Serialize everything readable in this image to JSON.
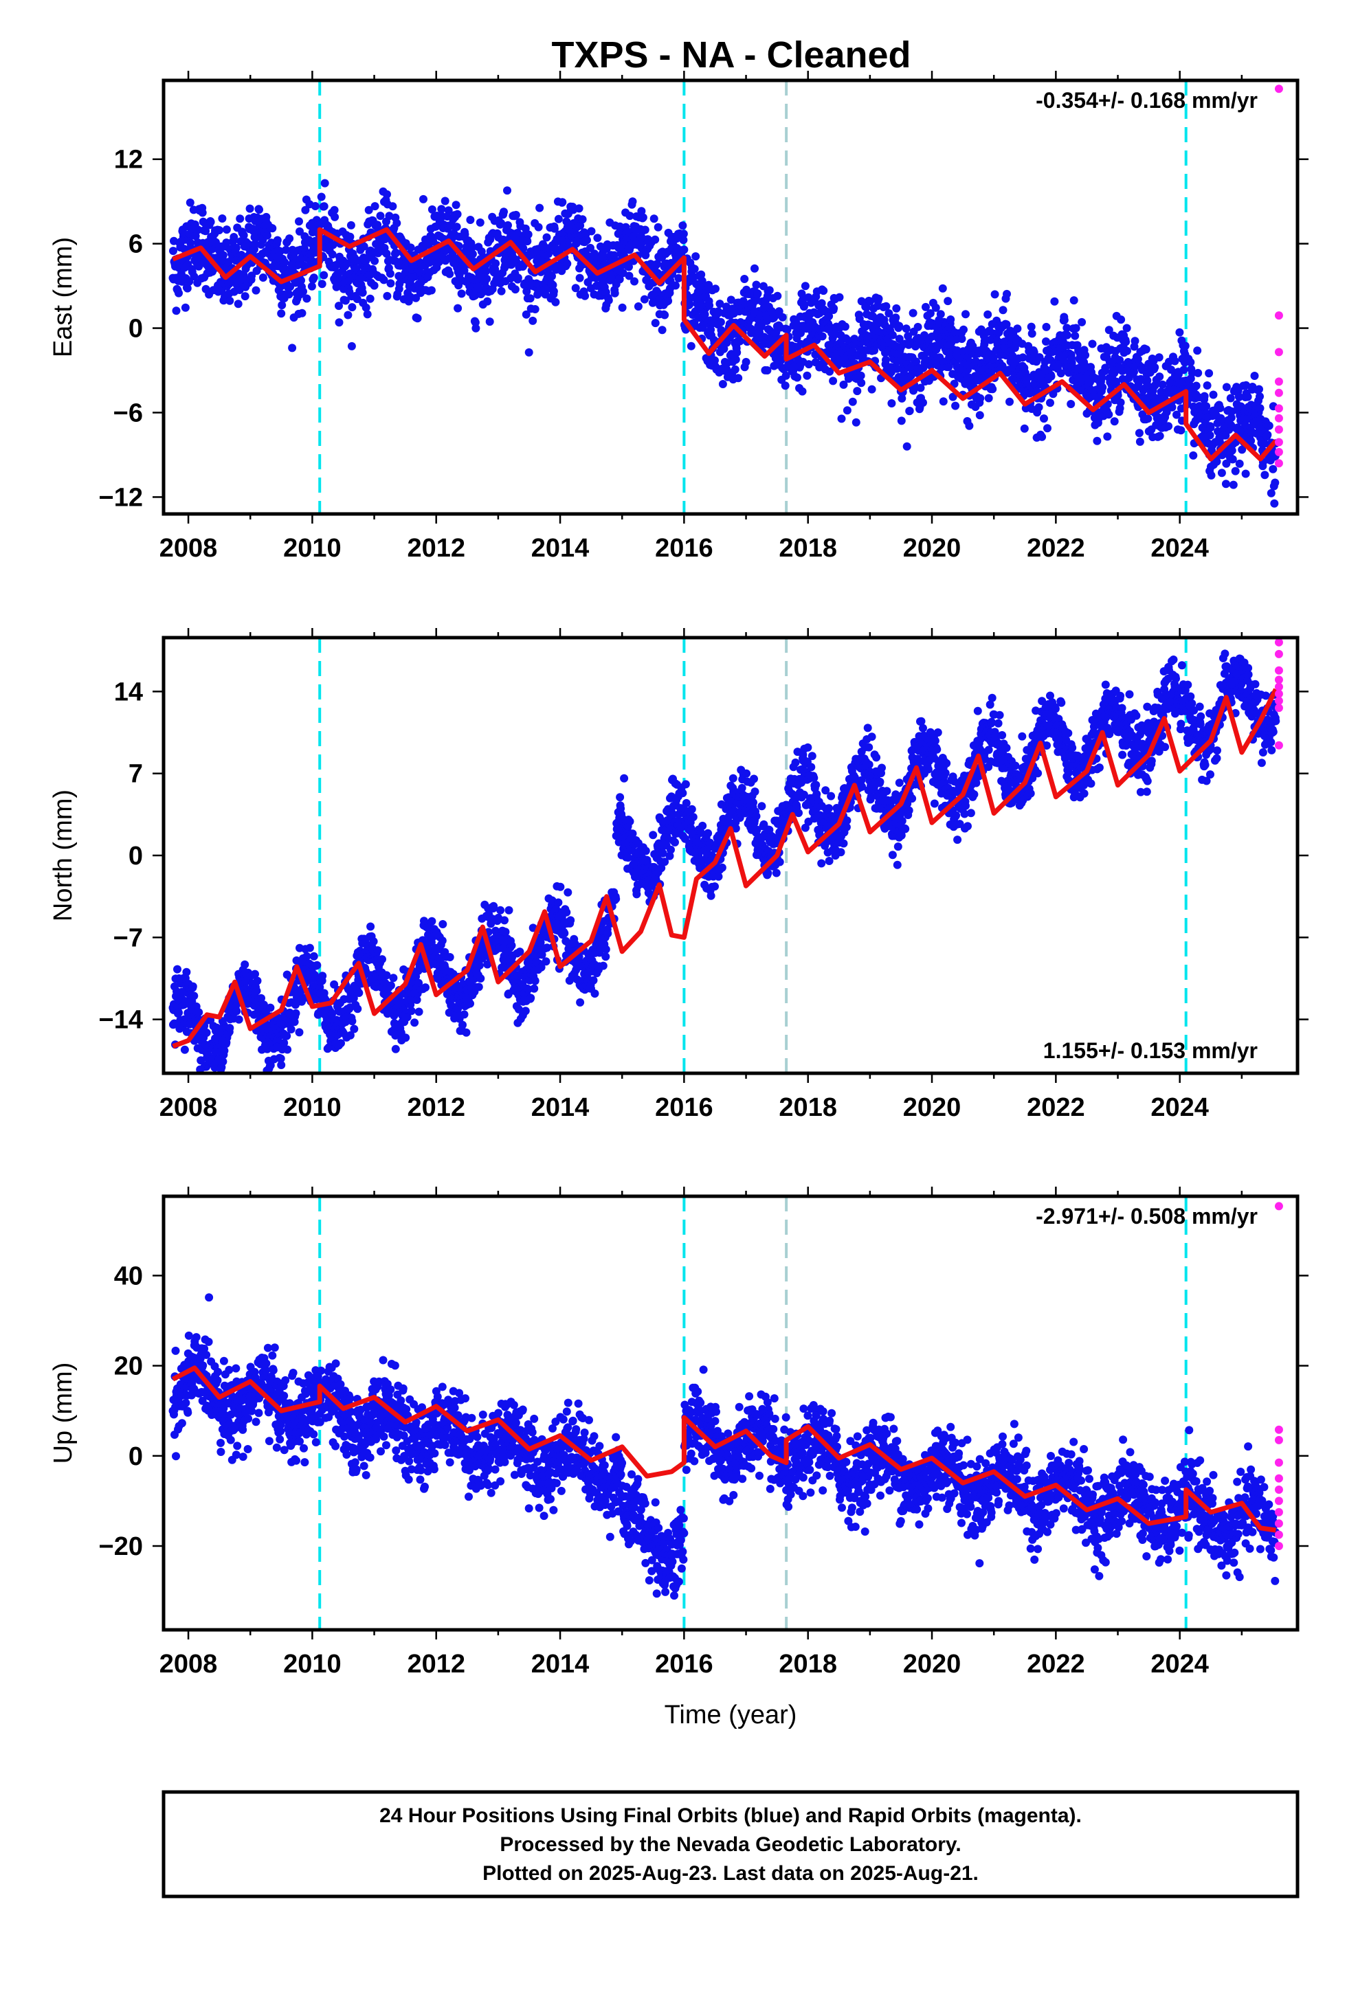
{
  "chart_data": {
    "type": "scatter",
    "title": "TXPS  - NA - Cleaned",
    "x_axis": {
      "label": "Time (year)",
      "range": [
        2007.6,
        2025.9
      ],
      "ticks": [
        2008,
        2010,
        2012,
        2014,
        2016,
        2018,
        2020,
        2022,
        2024
      ],
      "tick_labels": [
        "2008",
        "2010",
        "2012",
        "2014",
        "2016",
        "2018",
        "2020",
        "2022",
        "2024"
      ]
    },
    "event_lines": [
      {
        "x": 2010.12,
        "color": "#00e5ee"
      },
      {
        "x": 2016.0,
        "color": "#00e5ee"
      },
      {
        "x": 2017.65,
        "color": "#a8cfd2"
      },
      {
        "x": 2024.1,
        "color": "#00e5ee"
      }
    ],
    "panels": [
      {
        "id": "east",
        "ylabel": "East (mm)",
        "ylim": [
          -13.2,
          17.6
        ],
        "yticks": [
          -12,
          -6,
          0,
          6,
          12
        ],
        "ytick_labels": [
          "−12",
          "−6",
          "0",
          "6",
          "12"
        ],
        "rate_text": "-0.354+/- 0.168 mm/yr",
        "rate_position": "top-right",
        "final_orbits_trend": [
          [
            2007.75,
            5.0
          ],
          [
            2016.0,
            5.0
          ],
          [
            2016.0,
            0.5
          ],
          [
            2024.1,
            -4.3
          ],
          [
            2024.1,
            -6.5
          ],
          [
            2025.55,
            -8.0
          ]
        ],
        "seasonal": {
          "amplitude": 1.2,
          "phase": 0.1
        },
        "scatter_sigma": 1.5,
        "model_curve": [
          [
            2007.75,
            4.9
          ],
          [
            2008.2,
            5.7
          ],
          [
            2008.6,
            3.6
          ],
          [
            2009.0,
            5.1
          ],
          [
            2009.5,
            3.3
          ],
          [
            2010.12,
            4.4
          ],
          [
            2010.12,
            7.0
          ],
          [
            2010.6,
            5.8
          ],
          [
            2011.2,
            7.0
          ],
          [
            2011.6,
            4.8
          ],
          [
            2012.2,
            6.2
          ],
          [
            2012.6,
            4.2
          ],
          [
            2013.2,
            6.1
          ],
          [
            2013.6,
            4.0
          ],
          [
            2014.2,
            5.6
          ],
          [
            2014.6,
            3.9
          ],
          [
            2015.2,
            5.2
          ],
          [
            2015.6,
            3.2
          ],
          [
            2016.0,
            5.0
          ],
          [
            2016.0,
            0.6
          ],
          [
            2016.4,
            -1.8
          ],
          [
            2016.8,
            0.2
          ],
          [
            2017.3,
            -2.0
          ],
          [
            2017.65,
            -0.5
          ],
          [
            2017.65,
            -2.2
          ],
          [
            2018.1,
            -1.2
          ],
          [
            2018.5,
            -3.2
          ],
          [
            2019.0,
            -2.4
          ],
          [
            2019.5,
            -4.4
          ],
          [
            2020.0,
            -3.0
          ],
          [
            2020.5,
            -5.0
          ],
          [
            2021.1,
            -3.2
          ],
          [
            2021.5,
            -5.4
          ],
          [
            2022.1,
            -3.8
          ],
          [
            2022.6,
            -5.8
          ],
          [
            2023.1,
            -4.0
          ],
          [
            2023.5,
            -6.0
          ],
          [
            2024.1,
            -4.5
          ],
          [
            2024.1,
            -6.8
          ],
          [
            2024.5,
            -9.3
          ],
          [
            2024.9,
            -7.6
          ],
          [
            2025.3,
            -9.3
          ],
          [
            2025.55,
            -8.0
          ]
        ],
        "rapid_orbits": [
          [
            2025.6,
            17.0
          ],
          [
            2025.6,
            0.9
          ],
          [
            2025.6,
            -1.7
          ],
          [
            2025.6,
            -3.8
          ],
          [
            2025.6,
            -4.6
          ],
          [
            2025.6,
            -5.7
          ],
          [
            2025.6,
            -6.4
          ],
          [
            2025.6,
            -7.2
          ],
          [
            2025.6,
            -8.1
          ],
          [
            2025.6,
            -8.8
          ],
          [
            2025.6,
            -9.6
          ]
        ]
      },
      {
        "id": "north",
        "ylabel": "North (mm)",
        "ylim": [
          -18.6,
          18.6
        ],
        "yticks": [
          -14,
          -7,
          0,
          7,
          14
        ],
        "ytick_labels": [
          "−14",
          "−7",
          "0",
          "7",
          "14"
        ],
        "rate_text": "1.155+/- 0.153 mm/yr",
        "rate_position": "bottom-right",
        "final_orbits_trend": [
          [
            2007.75,
            -15.0
          ],
          [
            2014.9,
            -7.0
          ],
          [
            2014.9,
            0.0
          ],
          [
            2025.55,
            13.5
          ]
        ],
        "seasonal": {
          "amplitude": 2.6,
          "phase": 0.35
        },
        "scatter_sigma": 1.3,
        "model_curve": [
          [
            2007.75,
            -16.3
          ],
          [
            2008.0,
            -15.8
          ],
          [
            2008.3,
            -13.6
          ],
          [
            2008.5,
            -13.8
          ],
          [
            2008.75,
            -10.8
          ],
          [
            2009.0,
            -14.8
          ],
          [
            2009.5,
            -13.2
          ],
          [
            2009.75,
            -9.5
          ],
          [
            2010.0,
            -12.9
          ],
          [
            2010.3,
            -12.6
          ],
          [
            2010.6,
            -10.3
          ],
          [
            2010.75,
            -9.2
          ],
          [
            2011.0,
            -13.5
          ],
          [
            2011.5,
            -11.0
          ],
          [
            2011.75,
            -7.6
          ],
          [
            2012.0,
            -11.9
          ],
          [
            2012.5,
            -9.8
          ],
          [
            2012.75,
            -6.1
          ],
          [
            2013.0,
            -10.8
          ],
          [
            2013.5,
            -8.2
          ],
          [
            2013.75,
            -4.8
          ],
          [
            2014.0,
            -9.5
          ],
          [
            2014.5,
            -7.3
          ],
          [
            2014.75,
            -3.5
          ],
          [
            2015.0,
            -8.2
          ],
          [
            2015.3,
            -6.5
          ],
          [
            2015.6,
            -2.5
          ],
          [
            2015.8,
            -6.8
          ],
          [
            2016.0,
            -7.0
          ],
          [
            2016.2,
            -2.0
          ],
          [
            2016.5,
            -0.6
          ],
          [
            2016.75,
            2.3
          ],
          [
            2017.0,
            -2.6
          ],
          [
            2017.5,
            0.0
          ],
          [
            2017.75,
            3.5
          ],
          [
            2018.0,
            0.3
          ],
          [
            2018.5,
            2.7
          ],
          [
            2018.75,
            6.0
          ],
          [
            2019.0,
            2.0
          ],
          [
            2019.5,
            4.4
          ],
          [
            2019.75,
            7.5
          ],
          [
            2020.0,
            2.8
          ],
          [
            2020.5,
            5.2
          ],
          [
            2020.75,
            8.5
          ],
          [
            2021.0,
            3.6
          ],
          [
            2021.5,
            6.2
          ],
          [
            2021.75,
            9.6
          ],
          [
            2022.0,
            5.0
          ],
          [
            2022.5,
            7.2
          ],
          [
            2022.75,
            10.5
          ],
          [
            2023.0,
            6.0
          ],
          [
            2023.5,
            8.6
          ],
          [
            2023.75,
            11.7
          ],
          [
            2024.0,
            7.2
          ],
          [
            2024.5,
            9.8
          ],
          [
            2024.75,
            13.5
          ],
          [
            2025.0,
            8.8
          ],
          [
            2025.3,
            11.5
          ],
          [
            2025.55,
            14.2
          ]
        ],
        "rapid_orbits": [
          [
            2025.6,
            18.2
          ],
          [
            2025.6,
            17.2
          ],
          [
            2025.6,
            15.8
          ],
          [
            2025.6,
            15.0
          ],
          [
            2025.6,
            14.4
          ],
          [
            2025.6,
            13.8
          ],
          [
            2025.6,
            13.2
          ],
          [
            2025.6,
            12.6
          ],
          [
            2025.6,
            9.4
          ]
        ]
      },
      {
        "id": "up",
        "ylabel": "Up (mm)",
        "ylim": [
          -38.6,
          57.6
        ],
        "yticks": [
          -20,
          0,
          20,
          40
        ],
        "ytick_labels": [
          "−20",
          "0",
          "20",
          "40"
        ],
        "rate_text": "-2.971+/- 0.508 mm/yr",
        "rate_position": "top-right",
        "final_orbits_trend": [
          [
            2007.75,
            16.0
          ],
          [
            2015.0,
            -3.0
          ],
          [
            2015.0,
            -16.0
          ],
          [
            2016.0,
            -20.0
          ],
          [
            2016.0,
            4.0
          ],
          [
            2025.55,
            -16.0
          ]
        ],
        "seasonal": {
          "amplitude": 4.0,
          "phase": 0.05
        },
        "scatter_sigma": 4.2,
        "model_curve": [
          [
            2007.75,
            17.0
          ],
          [
            2008.1,
            19.5
          ],
          [
            2008.5,
            13.0
          ],
          [
            2009.0,
            16.5
          ],
          [
            2009.5,
            10.0
          ],
          [
            2010.12,
            12.0
          ],
          [
            2010.12,
            15.5
          ],
          [
            2010.5,
            10.5
          ],
          [
            2011.0,
            13.0
          ],
          [
            2011.5,
            7.5
          ],
          [
            2012.0,
            11.0
          ],
          [
            2012.5,
            5.5
          ],
          [
            2013.0,
            8.0
          ],
          [
            2013.5,
            1.5
          ],
          [
            2014.0,
            4.5
          ],
          [
            2014.5,
            -1.0
          ],
          [
            2015.0,
            2.0
          ],
          [
            2015.4,
            -4.5
          ],
          [
            2015.8,
            -3.5
          ],
          [
            2016.0,
            -1.5
          ],
          [
            2016.0,
            8.5
          ],
          [
            2016.5,
            2.0
          ],
          [
            2017.0,
            5.5
          ],
          [
            2017.4,
            0.0
          ],
          [
            2017.65,
            -1.5
          ],
          [
            2017.65,
            3.5
          ],
          [
            2018.0,
            6.5
          ],
          [
            2018.5,
            -0.5
          ],
          [
            2019.0,
            2.5
          ],
          [
            2019.5,
            -3.0
          ],
          [
            2020.0,
            -0.5
          ],
          [
            2020.5,
            -6.0
          ],
          [
            2021.0,
            -3.5
          ],
          [
            2021.5,
            -9.0
          ],
          [
            2022.0,
            -6.5
          ],
          [
            2022.5,
            -12.0
          ],
          [
            2023.0,
            -9.5
          ],
          [
            2023.5,
            -15.0
          ],
          [
            2024.1,
            -13.5
          ],
          [
            2024.1,
            -7.5
          ],
          [
            2024.5,
            -12.5
          ],
          [
            2025.0,
            -10.5
          ],
          [
            2025.3,
            -16.0
          ],
          [
            2025.55,
            -16.5
          ]
        ],
        "rapid_orbits": [
          [
            2025.6,
            55.4
          ],
          [
            2025.6,
            5.8
          ],
          [
            2025.6,
            3.5
          ],
          [
            2025.6,
            -1.5
          ],
          [
            2025.6,
            -5.0
          ],
          [
            2025.6,
            -7.5
          ],
          [
            2025.6,
            -10.0
          ],
          [
            2025.6,
            -12.5
          ],
          [
            2025.6,
            -15.0
          ],
          [
            2025.6,
            -17.5
          ],
          [
            2025.6,
            -20.0
          ]
        ]
      }
    ],
    "series": [
      {
        "name": "Final Orbits",
        "color": "#1010ee",
        "marker": "dot"
      },
      {
        "name": "Rapid Orbits",
        "color": "#ff22ee",
        "marker": "dot"
      },
      {
        "name": "model",
        "color": "#ee1010",
        "marker": "line"
      }
    ]
  },
  "footer": {
    "line1": "24 Hour Positions Using Final Orbits (blue) and Rapid Orbits (magenta).",
    "line2": "Processed by the Nevada Geodetic Laboratory.",
    "line3": "Plotted on 2025-Aug-23. Last data on 2025-Aug-21."
  }
}
